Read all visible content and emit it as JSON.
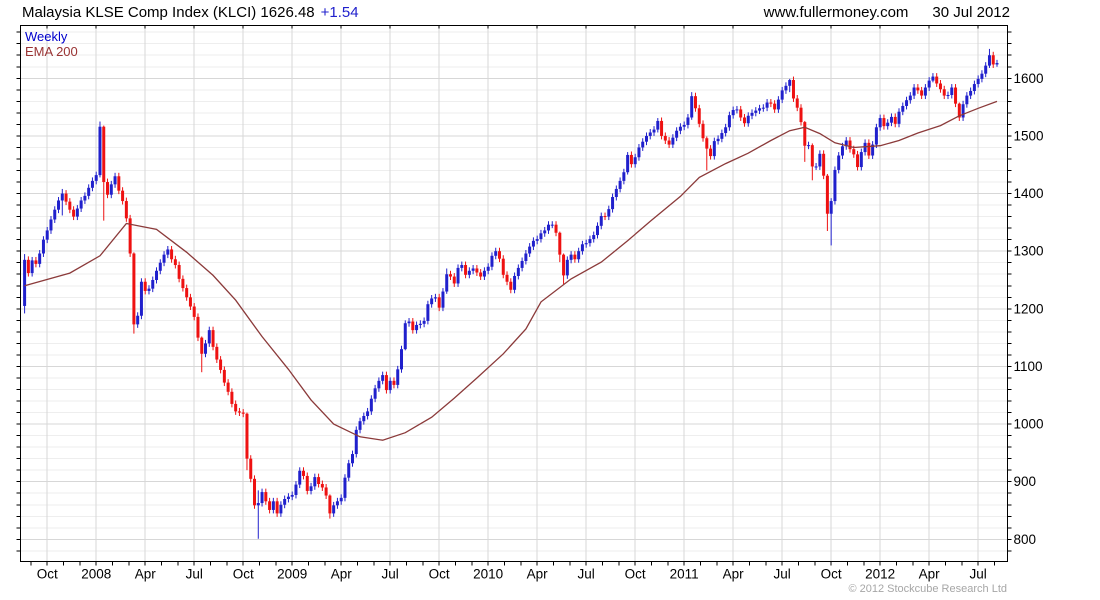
{
  "header": {
    "title": "Malaysia KLSE Comp Index (KLCI) 1626.48",
    "change": "+1.54",
    "website": "www.fullermoney.com",
    "date": "30 Jul 2012"
  },
  "legend": {
    "series": [
      {
        "label": "Weekly",
        "color": "#0000cc"
      },
      {
        "label": "EMA 200",
        "color": "#993333"
      }
    ]
  },
  "footer": {
    "copyright": "© 2012 Stockcube Research Ltd"
  },
  "chart_data": {
    "type": "candlestick",
    "title": "Malaysia KLSE Comp Index (KLCI)",
    "last_close": 1626.48,
    "change": 1.54,
    "interval": "weekly",
    "start_week": "2007-08-20",
    "end_week": "2012-07-30",
    "ylim": [
      762,
      1692
    ],
    "y_ticks": [
      800,
      900,
      1000,
      1100,
      1200,
      1300,
      1400,
      1500,
      1600
    ],
    "y_minor_step": 20,
    "x_labels": [
      {
        "label": "Oct",
        "week": 6
      },
      {
        "label": "2008",
        "week": 19
      },
      {
        "label": "Apr",
        "week": 32
      },
      {
        "label": "Jul",
        "week": 45
      },
      {
        "label": "Oct",
        "week": 58
      },
      {
        "label": "2009",
        "week": 71
      },
      {
        "label": "Apr",
        "week": 84
      },
      {
        "label": "Jul",
        "week": 97
      },
      {
        "label": "Oct",
        "week": 110
      },
      {
        "label": "2010",
        "week": 123
      },
      {
        "label": "Apr",
        "week": 136
      },
      {
        "label": "Jul",
        "week": 149
      },
      {
        "label": "Oct",
        "week": 162
      },
      {
        "label": "2011",
        "week": 175
      },
      {
        "label": "Apr",
        "week": 188
      },
      {
        "label": "Jul",
        "week": 201
      },
      {
        "label": "Oct",
        "week": 214
      },
      {
        "label": "2012",
        "week": 227
      },
      {
        "label": "Apr",
        "week": 240
      },
      {
        "label": "Jul",
        "week": 253
      }
    ],
    "first_open": 1205,
    "closes": [
      1285,
      1262,
      1284,
      1278,
      1296,
      1320,
      1336,
      1355,
      1372,
      1388,
      1400,
      1386,
      1372,
      1360,
      1374,
      1388,
      1396,
      1410,
      1422,
      1432,
      1516,
      1420,
      1398,
      1416,
      1430,
      1405,
      1387,
      1357,
      1296,
      1173,
      1188,
      1247,
      1231,
      1235,
      1250,
      1266,
      1280,
      1294,
      1303,
      1286,
      1276,
      1252,
      1236,
      1220,
      1204,
      1186,
      1150,
      1122,
      1140,
      1163,
      1134,
      1112,
      1094,
      1072,
      1056,
      1035,
      1022,
      1020,
      1018,
      940,
      905,
      859,
      863,
      882,
      866,
      851,
      866,
      845,
      860,
      870,
      874,
      877,
      895,
      919,
      910,
      884,
      892,
      908,
      896,
      890,
      876,
      845,
      859,
      866,
      872,
      907,
      932,
      948,
      990,
      1005,
      1014,
      1022,
      1044,
      1062,
      1075,
      1085,
      1059,
      1075,
      1068,
      1095,
      1130,
      1175,
      1178,
      1163,
      1172,
      1174,
      1179,
      1208,
      1218,
      1220,
      1202,
      1230,
      1260,
      1256,
      1244,
      1271,
      1276,
      1259,
      1266,
      1270,
      1263,
      1256,
      1266,
      1273,
      1292,
      1300,
      1287,
      1259,
      1247,
      1233,
      1257,
      1271,
      1283,
      1296,
      1308,
      1318,
      1321,
      1331,
      1336,
      1346,
      1346,
      1332,
      1294,
      1258,
      1285,
      1294,
      1286,
      1300,
      1312,
      1314,
      1321,
      1328,
      1344,
      1361,
      1360,
      1373,
      1394,
      1408,
      1422,
      1437,
      1467,
      1451,
      1463,
      1480,
      1490,
      1500,
      1506,
      1511,
      1526,
      1500,
      1492,
      1485,
      1497,
      1509,
      1516,
      1519,
      1532,
      1569,
      1548,
      1521,
      1496,
      1478,
      1465,
      1491,
      1495,
      1505,
      1515,
      1536,
      1545,
      1546,
      1532,
      1522,
      1535,
      1540,
      1544,
      1548,
      1549,
      1558,
      1556,
      1546,
      1563,
      1579,
      1587,
      1597,
      1565,
      1549,
      1524,
      1483,
      1484,
      1447,
      1447,
      1469,
      1431,
      1365,
      1387,
      1441,
      1466,
      1482,
      1492,
      1477,
      1468,
      1446,
      1472,
      1488,
      1466,
      1485,
      1515,
      1531,
      1517,
      1523,
      1533,
      1521,
      1542,
      1552,
      1562,
      1570,
      1584,
      1579,
      1570,
      1584,
      1596,
      1603,
      1591,
      1581,
      1570,
      1571,
      1584,
      1556,
      1532,
      1555,
      1570,
      1578,
      1590,
      1599,
      1608,
      1622,
      1640,
      1624,
      1626.48
    ],
    "default_wick": 6,
    "wick_overrides": {
      "0": [
        1295,
        1192
      ],
      "10": [
        1408,
        1362
      ],
      "20": [
        1525,
        1428
      ],
      "21": [
        1518,
        1353
      ],
      "29": [
        1298,
        1157
      ],
      "47": [
        1152,
        1090
      ],
      "59": [
        1020,
        920
      ],
      "62": [
        885,
        801
      ],
      "81": [
        878,
        836
      ],
      "101": [
        1180,
        1128
      ],
      "112": [
        1270,
        1226
      ],
      "142": [
        1334,
        1281
      ],
      "143": [
        1296,
        1243
      ],
      "160": [
        1472,
        1433
      ],
      "168": [
        1531,
        1506
      ],
      "177": [
        1576,
        1528
      ],
      "181": [
        1499,
        1440
      ],
      "203": [
        1599,
        1576
      ],
      "207": [
        1526,
        1455
      ],
      "209": [
        1487,
        1423
      ],
      "213": [
        1434,
        1335
      ],
      "214": [
        1392,
        1310
      ],
      "241": [
        1609,
        1593
      ],
      "248": [
        1558,
        1526
      ],
      "256": [
        1651,
        1618
      ],
      "258": [
        1632,
        1620
      ]
    },
    "ema_series_name": "EMA 200",
    "ema_anchors": [
      [
        0,
        1240
      ],
      [
        12,
        1262
      ],
      [
        20,
        1292
      ],
      [
        27,
        1348
      ],
      [
        35,
        1338
      ],
      [
        43,
        1298
      ],
      [
        50,
        1258
      ],
      [
        56,
        1215
      ],
      [
        63,
        1152
      ],
      [
        70,
        1095
      ],
      [
        76,
        1042
      ],
      [
        82,
        1000
      ],
      [
        89,
        978
      ],
      [
        95,
        972
      ],
      [
        101,
        985
      ],
      [
        108,
        1012
      ],
      [
        114,
        1045
      ],
      [
        120,
        1080
      ],
      [
        127,
        1122
      ],
      [
        133,
        1165
      ],
      [
        137,
        1212
      ],
      [
        145,
        1252
      ],
      [
        153,
        1281
      ],
      [
        160,
        1318
      ],
      [
        166,
        1352
      ],
      [
        174,
        1395
      ],
      [
        179,
        1428
      ],
      [
        186,
        1452
      ],
      [
        192,
        1470
      ],
      [
        198,
        1492
      ],
      [
        203,
        1509
      ],
      [
        207,
        1515
      ],
      [
        211,
        1504
      ],
      [
        215,
        1488
      ],
      [
        220,
        1480
      ],
      [
        227,
        1483
      ],
      [
        232,
        1492
      ],
      [
        237,
        1505
      ],
      [
        243,
        1518
      ],
      [
        248,
        1535
      ],
      [
        253,
        1548
      ],
      [
        258,
        1560
      ]
    ],
    "colors": {
      "up": "#2020cc",
      "down": "#ee1111",
      "ema": "#8b3a3a",
      "grid_minor": "#eeeeee",
      "grid_major": "#d7d7d7",
      "axis": "#000000",
      "muted": "#a6a6a6"
    }
  }
}
